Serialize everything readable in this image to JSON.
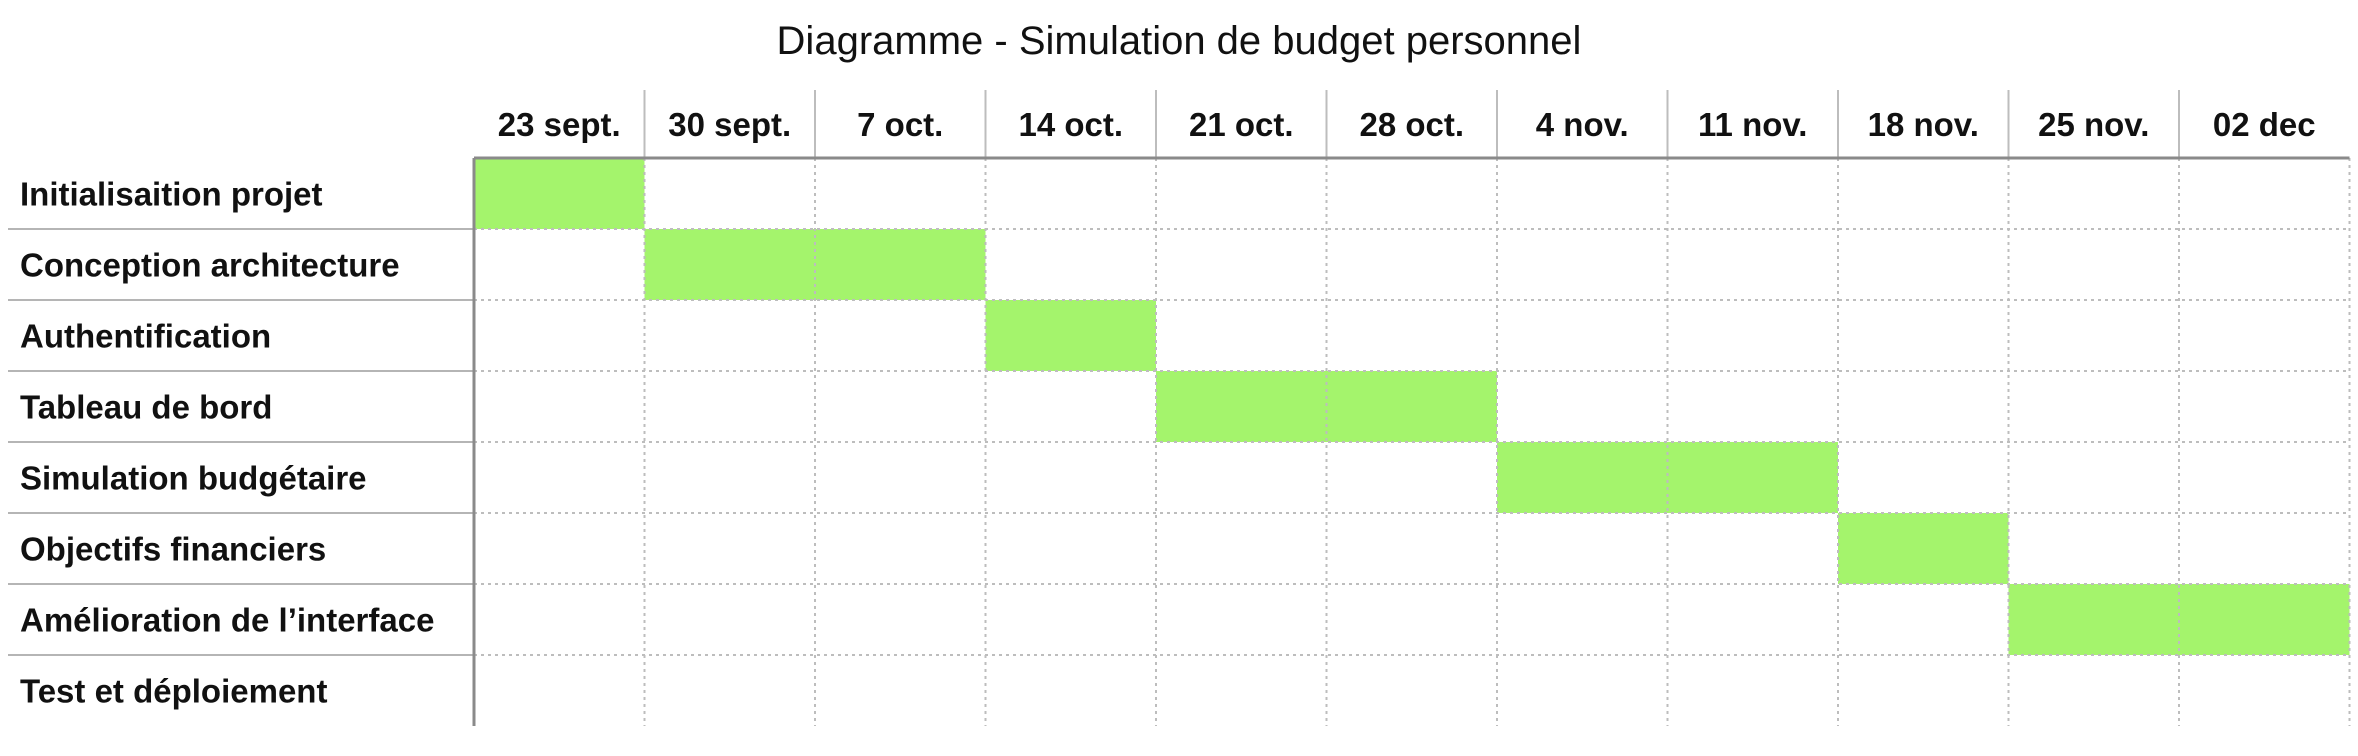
{
  "chart_data": {
    "type": "table",
    "title": "Diagramme - Simulation de budget personnel",
    "columns": [
      "23 sept.",
      "30 sept.",
      "7 oct.",
      "14 oct.",
      "21 oct.",
      "28 oct.",
      "4 nov.",
      "11 nov.",
      "18 nov.",
      "25 nov.",
      "02 dec"
    ],
    "tasks": [
      {
        "label": "Initialisaition projet",
        "start": 0,
        "span": 1
      },
      {
        "label": "Conception architecture",
        "start": 1,
        "span": 2
      },
      {
        "label": "Authentification",
        "start": 3,
        "span": 1
      },
      {
        "label": "Tableau de bord",
        "start": 4,
        "span": 2
      },
      {
        "label": "Simulation budgétaire",
        "start": 6,
        "span": 2
      },
      {
        "label": "Objectifs financiers",
        "start": 8,
        "span": 1
      },
      {
        "label": "Amélioration de l’interface",
        "start": 9,
        "span": 2
      },
      {
        "label": "Test et déploiement",
        "start": null,
        "span": 0
      }
    ],
    "bar_color": "#a4f46c",
    "grid": true
  }
}
